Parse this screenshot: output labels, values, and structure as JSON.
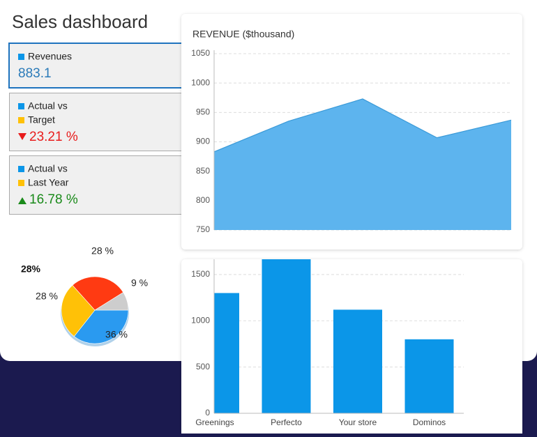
{
  "header": {
    "title": "Sales dashboard"
  },
  "kpis": [
    {
      "labels": [
        "Revenues"
      ],
      "value": "883.1"
    },
    {
      "labels": [
        "Actual vs",
        "Target"
      ],
      "value": "23.21 %"
    },
    {
      "labels": [
        "Actual vs",
        "Last Year"
      ],
      "value": "16.78 %"
    }
  ],
  "chart_data": [
    {
      "type": "area",
      "title": "REVENUE ($thousand)",
      "categories": [
        null,
        null,
        null,
        null,
        null
      ],
      "values": [
        883,
        935,
        973,
        907,
        937
      ],
      "color": "#5db4ee",
      "ylim": [
        750,
        1050
      ],
      "yticks": [
        750,
        800,
        850,
        900,
        950,
        1000,
        1050
      ],
      "grid": true
    },
    {
      "type": "bar",
      "categories": [
        "Greenings",
        "Perfecto",
        "Your store",
        "Dominos"
      ],
      "values": [
        1300,
        1700,
        1120,
        800
      ],
      "color": "#0b96e8",
      "ylim": [
        0,
        1665
      ],
      "yticks": [
        0,
        500,
        1000,
        1500
      ],
      "grid": true
    },
    {
      "type": "pie",
      "values": [
        36,
        28,
        28,
        9
      ],
      "value_labels": [
        "36 %",
        "28 %",
        "28 %",
        "9 %"
      ],
      "colors": [
        "#2a9af0",
        "#ffc107",
        "#ff3a12",
        "#cdcdcd"
      ],
      "highlight_label": "28%"
    }
  ]
}
